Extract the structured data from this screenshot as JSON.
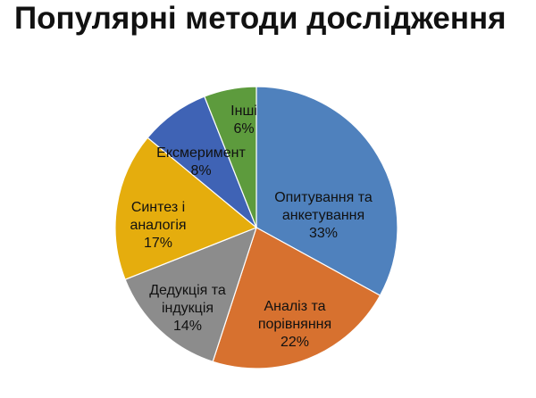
{
  "chart_data": {
    "type": "pie",
    "title": "Популярні методи дослідження",
    "start_angle_deg": 0,
    "direction": "clockwise",
    "slices": [
      {
        "label_lines": [
          "Опитування та",
          "анкетування",
          "33%"
        ],
        "value": 33,
        "color": "#4f81bd"
      },
      {
        "label_lines": [
          "Аналіз та",
          "порівняння",
          "22%"
        ],
        "value": 22,
        "color": "#d7712f"
      },
      {
        "label_lines": [
          "Дедукція та",
          "індукція",
          "14%"
        ],
        "value": 14,
        "color": "#8c8c8c"
      },
      {
        "label_lines": [
          "Синтез і",
          "аналогія",
          "17%"
        ],
        "value": 17,
        "color": "#e5ad0d"
      },
      {
        "label_lines": [
          "Ексмеримент",
          "8%"
        ],
        "value": 8,
        "color": "#3f63b5"
      },
      {
        "label_lines": [
          "Інші",
          "6%"
        ],
        "value": 6,
        "color": "#5d9b3d"
      }
    ]
  }
}
